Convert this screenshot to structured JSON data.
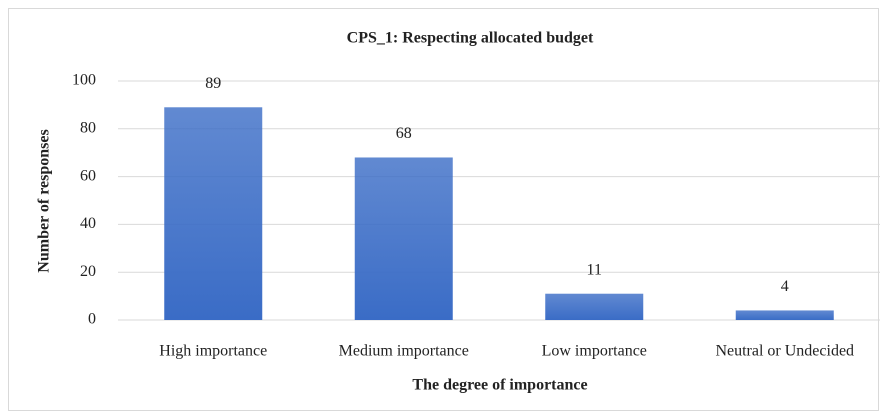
{
  "chart_data": {
    "type": "bar",
    "title": "CPS_1: Respecting allocated budget",
    "x_label": "The degree of importance",
    "y_label": "Number of responses",
    "categories": [
      "High importance",
      "Medium importance",
      "Low importance",
      "Neutral or Undecided"
    ],
    "values": [
      89,
      68,
      11,
      4
    ],
    "color": "#3a6cc6",
    "ylim": [
      0,
      100
    ],
    "yticks": [
      0,
      20,
      40,
      60,
      80,
      100
    ],
    "grid": true
  }
}
